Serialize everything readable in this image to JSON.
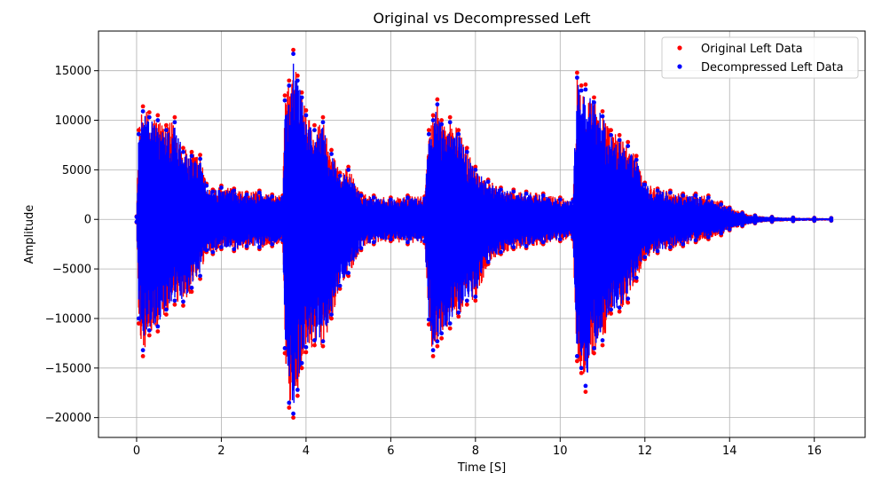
{
  "chart_data": {
    "type": "scatter",
    "title": "Original vs Decompressed Left",
    "xlabel": "Time [S]",
    "ylabel": "Amplitude",
    "xlim": [
      -0.9,
      17.2
    ],
    "ylim": [
      -22000,
      19000
    ],
    "xticks": [
      0,
      2,
      4,
      6,
      8,
      10,
      12,
      14,
      16
    ],
    "yticks": [
      -20000,
      -15000,
      -10000,
      -5000,
      0,
      5000,
      10000,
      15000
    ],
    "xtick_labels": [
      "0",
      "2",
      "4",
      "6",
      "8",
      "10",
      "12",
      "14",
      "16"
    ],
    "ytick_labels": [
      "−20000",
      "−15000",
      "−10000",
      "−5000",
      "0",
      "5000",
      "10000",
      "15000"
    ],
    "grid": true,
    "legend_position": "top-right",
    "colors": {
      "original": "#ff0000",
      "decompressed": "#0000ff"
    },
    "series": [
      {
        "name": "Original Left Data",
        "color": "#ff0000",
        "envelope": {
          "x": [
            0,
            0.05,
            0.15,
            0.3,
            0.5,
            0.7,
            0.9,
            1.1,
            1.3,
            1.5,
            1.65,
            1.8,
            2.0,
            2.3,
            2.6,
            2.9,
            3.2,
            3.45,
            3.5,
            3.6,
            3.7,
            3.8,
            3.9,
            4.0,
            4.2,
            4.4,
            4.6,
            4.8,
            5.0,
            5.3,
            5.6,
            6.0,
            6.4,
            6.8,
            6.9,
            7.0,
            7.1,
            7.2,
            7.4,
            7.6,
            7.8,
            8.0,
            8.3,
            8.6,
            8.9,
            9.2,
            9.6,
            10.0,
            10.3,
            10.4,
            10.5,
            10.6,
            10.8,
            11.0,
            11.2,
            11.4,
            11.6,
            11.8,
            12.0,
            12.3,
            12.6,
            12.9,
            13.2,
            13.5,
            13.8,
            14.0,
            14.3,
            14.6,
            15.0,
            15.5,
            16.0,
            16.4
          ],
          "upper": [
            300,
            9000,
            11400,
            10800,
            10500,
            9500,
            10300,
            7200,
            6800,
            6500,
            3600,
            3000,
            3400,
            3100,
            2700,
            2900,
            2500,
            2400,
            12500,
            14000,
            17100,
            14500,
            12800,
            11000,
            9500,
            10300,
            7000,
            4700,
            5300,
            2600,
            2400,
            2200,
            2400,
            2300,
            9000,
            10500,
            12100,
            10000,
            10300,
            9000,
            7200,
            5300,
            4000,
            3200,
            3000,
            2800,
            2600,
            2200,
            2000,
            14800,
            13500,
            13600,
            12300,
            10900,
            9000,
            8500,
            7800,
            6400,
            3700,
            3100,
            2900,
            2600,
            2600,
            2400,
            1700,
            1200,
            700,
            400,
            250,
            180,
            150,
            130
          ],
          "lower": [
            -300,
            -10500,
            -13800,
            -11700,
            -11300,
            -9600,
            -8600,
            -8700,
            -7300,
            -6000,
            -3300,
            -3500,
            -3000,
            -3200,
            -2900,
            -3000,
            -2700,
            -2300,
            -13500,
            -19000,
            -20000,
            -17800,
            -15000,
            -13400,
            -12700,
            -12800,
            -10000,
            -7000,
            -5700,
            -3100,
            -2500,
            -2200,
            -2500,
            -2400,
            -10600,
            -13800,
            -12800,
            -12000,
            -11000,
            -9800,
            -8600,
            -8200,
            -4500,
            -3500,
            -3000,
            -2900,
            -2500,
            -2200,
            -2000,
            -14300,
            -15500,
            -17400,
            -13500,
            -12700,
            -9500,
            -9300,
            -8400,
            -6200,
            -4000,
            -3400,
            -3000,
            -2700,
            -2300,
            -2000,
            -1600,
            -1100,
            -700,
            -400,
            -250,
            -180,
            -150,
            -130
          ]
        }
      },
      {
        "name": "Decompressed Left Data",
        "color": "#0000ff",
        "envelope": {
          "x": [
            0,
            0.05,
            0.15,
            0.3,
            0.5,
            0.7,
            0.9,
            1.1,
            1.3,
            1.5,
            1.65,
            1.8,
            2.0,
            2.3,
            2.6,
            2.9,
            3.2,
            3.45,
            3.5,
            3.6,
            3.7,
            3.8,
            3.9,
            4.0,
            4.2,
            4.4,
            4.6,
            4.8,
            5.0,
            5.3,
            5.6,
            6.0,
            6.4,
            6.8,
            6.9,
            7.0,
            7.1,
            7.2,
            7.4,
            7.6,
            7.8,
            8.0,
            8.3,
            8.6,
            8.9,
            9.2,
            9.6,
            10.0,
            10.3,
            10.4,
            10.5,
            10.6,
            10.8,
            11.0,
            11.2,
            11.4,
            11.6,
            11.8,
            12.0,
            12.3,
            12.6,
            12.9,
            13.2,
            13.5,
            13.8,
            14.0,
            14.3,
            14.6,
            15.0,
            15.5,
            16.0,
            16.4
          ],
          "upper": [
            250,
            8600,
            10900,
            10300,
            10000,
            9000,
            9800,
            6800,
            6400,
            6100,
            3400,
            2800,
            3200,
            2900,
            2500,
            2700,
            2300,
            2200,
            12000,
            13500,
            16700,
            14000,
            12300,
            10500,
            9000,
            9800,
            6600,
            4400,
            5000,
            2400,
            2200,
            2000,
            2200,
            2100,
            8600,
            10000,
            11600,
            9600,
            9800,
            8600,
            6800,
            5000,
            3800,
            3000,
            2800,
            2600,
            2400,
            2000,
            1800,
            14300,
            13000,
            13100,
            11800,
            10400,
            8500,
            8000,
            7400,
            6000,
            3500,
            2900,
            2700,
            2400,
            2400,
            2200,
            1500,
            1100,
            600,
            350,
            220,
            160,
            130,
            110
          ],
          "lower": [
            -250,
            -10000,
            -13200,
            -11200,
            -10800,
            -9100,
            -8200,
            -8300,
            -6900,
            -5700,
            -3100,
            -3300,
            -2800,
            -3000,
            -2700,
            -2800,
            -2500,
            -2100,
            -13000,
            -18500,
            -19600,
            -17200,
            -14500,
            -12900,
            -12200,
            -12300,
            -9600,
            -6700,
            -5400,
            -2900,
            -2300,
            -2000,
            -2300,
            -2200,
            -10100,
            -13200,
            -12300,
            -11500,
            -10500,
            -9400,
            -8200,
            -7800,
            -4300,
            -3300,
            -2800,
            -2700,
            -2300,
            -2000,
            -1800,
            -13800,
            -15000,
            -16800,
            -13000,
            -12200,
            -9100,
            -8900,
            -8000,
            -5900,
            -3800,
            -3200,
            -2800,
            -2500,
            -2100,
            -1800,
            -1400,
            -1000,
            -600,
            -350,
            -220,
            -160,
            -130,
            -110
          ]
        }
      }
    ]
  }
}
